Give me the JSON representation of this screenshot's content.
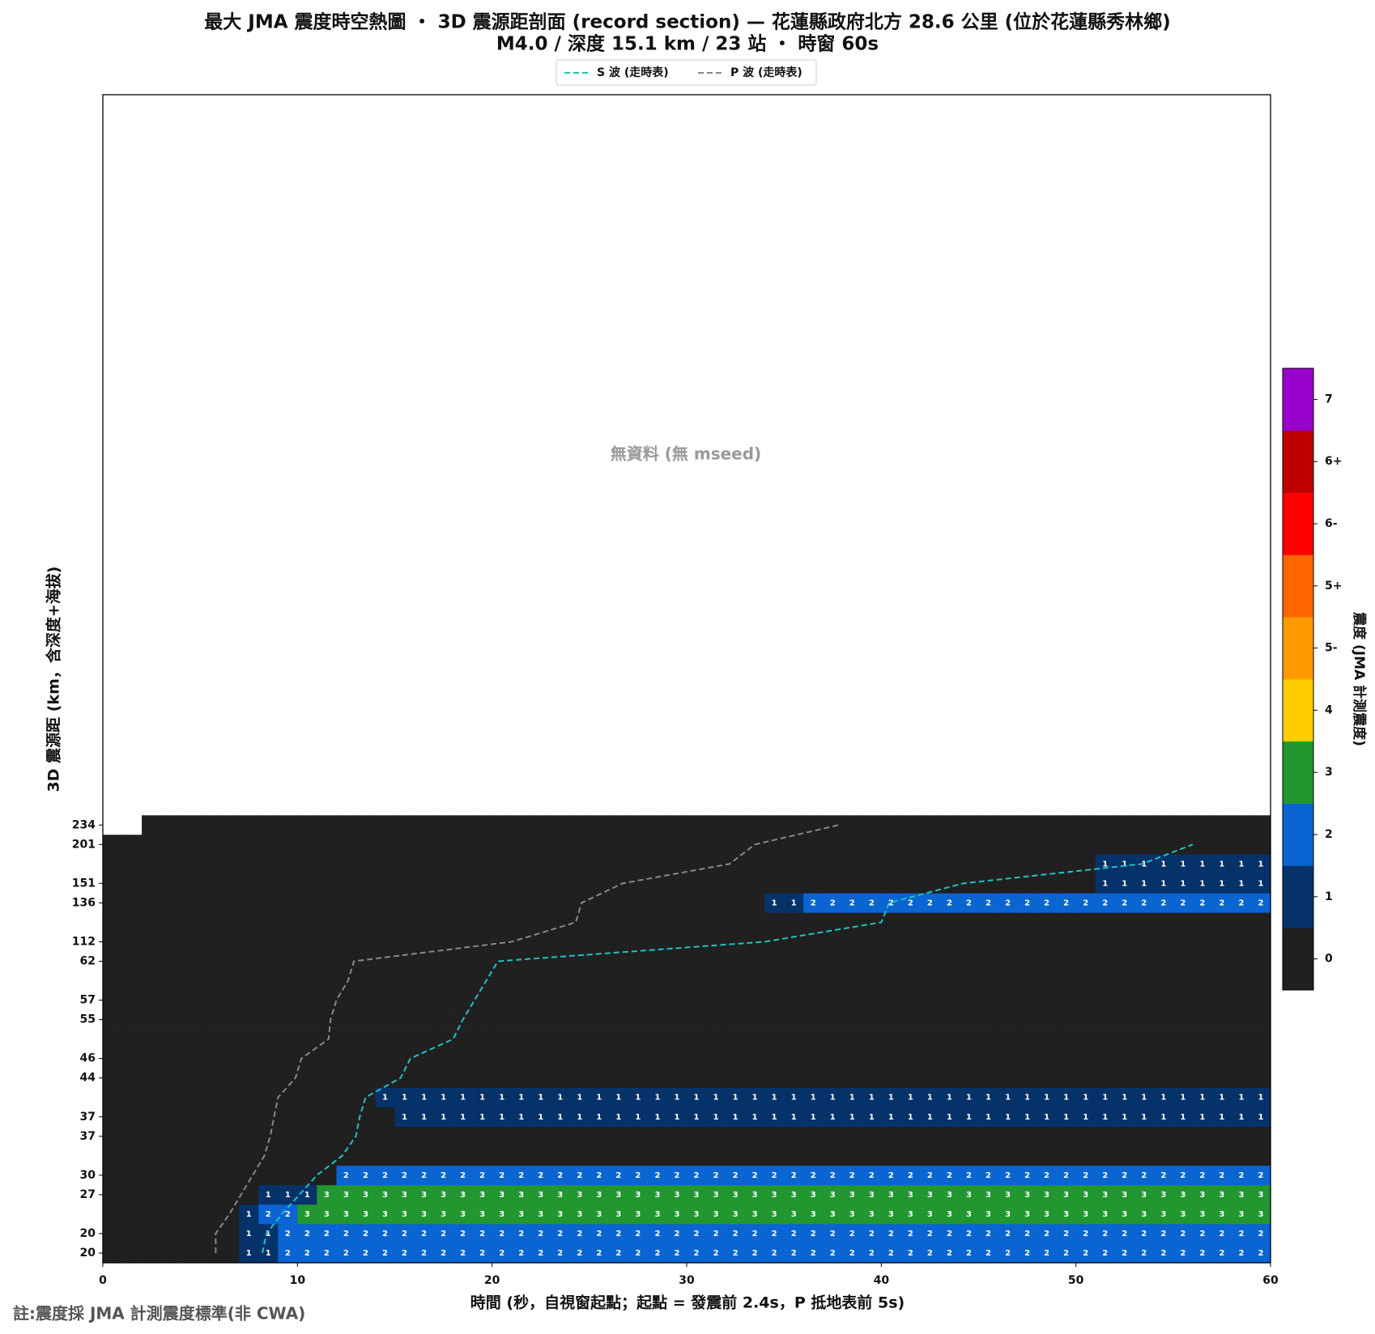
{
  "chart_data": {
    "type": "heatmap",
    "title": "最大 JMA 震度時空熱圖 ・ 3D 震源距剖面 (record section) — 花蓮縣政府北方  28.6  公里 (位於花蓮縣秀林鄉)",
    "subtitle": "M4.0 / 深度 15.1 km / 23 站 ・ 時窗 60s",
    "annotation": "無資料 (無 mseed)",
    "xlabel": "時間 (秒，自視窗起點；起點 = 發震前 2.4s，P 抵地表前 5s)",
    "ylabel": "3D 震源距 (km，含深度+海拔)",
    "footnote": "註:震度採 JMA 計測震度標準(非 CWA)",
    "xlim": [
      0,
      60
    ],
    "xticks": [
      0,
      10,
      20,
      30,
      40,
      50,
      60
    ],
    "categories": [
      "20",
      "20",
      null,
      "27",
      "30",
      null,
      "37",
      "37",
      null,
      "44",
      "46",
      null,
      "55",
      "57",
      null,
      "62",
      "112",
      null,
      "136",
      "151",
      null,
      "201",
      "234"
    ],
    "values": [
      [
        0,
        0,
        0,
        0,
        0,
        0,
        0,
        1,
        1,
        2,
        2,
        2,
        2,
        2,
        2,
        2,
        2,
        2,
        2,
        2,
        2,
        2,
        2,
        2,
        2,
        2,
        2,
        2,
        2,
        2,
        2,
        2,
        2,
        2,
        2,
        2,
        2,
        2,
        2,
        2,
        2,
        2,
        2,
        2,
        2,
        2,
        2,
        2,
        2,
        2,
        2,
        2,
        2,
        2,
        2,
        2,
        2,
        2,
        2,
        2
      ],
      [
        0,
        0,
        0,
        0,
        0,
        0,
        0,
        1,
        1,
        2,
        2,
        2,
        2,
        2,
        2,
        2,
        2,
        2,
        2,
        2,
        2,
        2,
        2,
        2,
        2,
        2,
        2,
        2,
        2,
        2,
        2,
        2,
        2,
        2,
        2,
        2,
        2,
        2,
        2,
        2,
        2,
        2,
        2,
        2,
        2,
        2,
        2,
        2,
        2,
        2,
        2,
        2,
        2,
        2,
        2,
        2,
        2,
        2,
        2,
        2
      ],
      [
        0,
        0,
        0,
        0,
        0,
        0,
        0,
        1,
        2,
        2,
        3,
        3,
        3,
        3,
        3,
        3,
        3,
        3,
        3,
        3,
        3,
        3,
        3,
        3,
        3,
        3,
        3,
        3,
        3,
        3,
        3,
        3,
        3,
        3,
        3,
        3,
        3,
        3,
        3,
        3,
        3,
        3,
        3,
        3,
        3,
        3,
        3,
        3,
        3,
        3,
        3,
        3,
        3,
        3,
        3,
        3,
        3,
        3,
        3,
        3
      ],
      [
        0,
        0,
        0,
        0,
        0,
        0,
        0,
        0,
        1,
        1,
        1,
        3,
        3,
        3,
        3,
        3,
        3,
        3,
        3,
        3,
        3,
        3,
        3,
        3,
        3,
        3,
        3,
        3,
        3,
        3,
        3,
        3,
        3,
        3,
        3,
        3,
        3,
        3,
        3,
        3,
        3,
        3,
        3,
        3,
        3,
        3,
        3,
        3,
        3,
        3,
        3,
        3,
        3,
        3,
        3,
        3,
        3,
        3,
        3,
        3
      ],
      [
        0,
        0,
        0,
        0,
        0,
        0,
        0,
        0,
        0,
        0,
        0,
        0,
        2,
        2,
        2,
        2,
        2,
        2,
        2,
        2,
        2,
        2,
        2,
        2,
        2,
        2,
        2,
        2,
        2,
        2,
        2,
        2,
        2,
        2,
        2,
        2,
        2,
        2,
        2,
        2,
        2,
        2,
        2,
        2,
        2,
        2,
        2,
        2,
        2,
        2,
        2,
        2,
        2,
        2,
        2,
        2,
        2,
        2,
        2,
        2
      ],
      [
        0,
        0,
        0,
        0,
        0,
        0,
        0,
        0,
        0,
        0,
        0,
        0,
        0,
        0,
        0,
        0,
        0,
        0,
        0,
        0,
        0,
        0,
        0,
        0,
        0,
        0,
        0,
        0,
        0,
        0,
        0,
        0,
        0,
        0,
        0,
        0,
        0,
        0,
        0,
        0,
        0,
        0,
        0,
        0,
        0,
        0,
        0,
        0,
        0,
        0,
        0,
        0,
        0,
        0,
        0,
        0,
        0,
        0,
        0,
        0
      ],
      [
        0,
        0,
        0,
        0,
        0,
        0,
        0,
        0,
        0,
        0,
        0,
        0,
        0,
        0,
        0,
        0,
        0,
        0,
        0,
        0,
        0,
        0,
        0,
        0,
        0,
        0,
        0,
        0,
        0,
        0,
        0,
        0,
        0,
        0,
        0,
        0,
        0,
        0,
        0,
        0,
        0,
        0,
        0,
        0,
        0,
        0,
        0,
        0,
        0,
        0,
        0,
        0,
        0,
        0,
        0,
        0,
        0,
        0,
        0,
        0
      ],
      [
        0,
        0,
        0,
        0,
        0,
        0,
        0,
        0,
        0,
        0,
        0,
        0,
        0,
        0,
        0,
        1,
        1,
        1,
        1,
        1,
        1,
        1,
        1,
        1,
        1,
        1,
        1,
        1,
        1,
        1,
        1,
        1,
        1,
        1,
        1,
        1,
        1,
        1,
        1,
        1,
        1,
        1,
        1,
        1,
        1,
        1,
        1,
        1,
        1,
        1,
        1,
        1,
        1,
        1,
        1,
        1,
        1,
        1,
        1,
        1
      ],
      [
        0,
        0,
        0,
        0,
        0,
        0,
        0,
        0,
        0,
        0,
        0,
        0,
        0,
        0,
        1,
        1,
        1,
        1,
        1,
        1,
        1,
        1,
        1,
        1,
        1,
        1,
        1,
        1,
        1,
        1,
        1,
        1,
        1,
        1,
        1,
        1,
        1,
        1,
        1,
        1,
        1,
        1,
        1,
        1,
        1,
        1,
        1,
        1,
        1,
        1,
        1,
        1,
        1,
        1,
        1,
        1,
        1,
        1,
        1,
        1
      ],
      [
        0,
        0,
        0,
        0,
        0,
        0,
        0,
        0,
        0,
        0,
        0,
        0,
        0,
        0,
        0,
        0,
        0,
        0,
        0,
        0,
        0,
        0,
        0,
        0,
        0,
        0,
        0,
        0,
        0,
        0,
        0,
        0,
        0,
        0,
        0,
        0,
        0,
        0,
        0,
        0,
        0,
        0,
        0,
        0,
        0,
        0,
        0,
        0,
        0,
        0,
        0,
        0,
        0,
        0,
        0,
        0,
        0,
        0,
        0,
        0
      ],
      [
        0,
        0,
        0,
        0,
        0,
        0,
        0,
        0,
        0,
        0,
        0,
        0,
        0,
        0,
        0,
        0,
        0,
        0,
        0,
        0,
        0,
        0,
        0,
        0,
        0,
        0,
        0,
        0,
        0,
        0,
        0,
        0,
        0,
        0,
        0,
        0,
        0,
        0,
        0,
        0,
        0,
        0,
        0,
        0,
        0,
        0,
        0,
        0,
        0,
        0,
        0,
        0,
        0,
        0,
        0,
        0,
        0,
        0,
        0,
        0
      ],
      [
        0,
        0,
        0,
        0,
        0,
        0,
        0,
        0,
        0,
        0,
        0,
        0,
        0,
        0,
        0,
        0,
        0,
        0,
        0,
        0,
        0,
        0,
        0,
        0,
        0,
        0,
        0,
        0,
        0,
        0,
        0,
        0,
        0,
        0,
        0,
        0,
        0,
        0,
        0,
        0,
        0,
        0,
        0,
        0,
        0,
        0,
        0,
        0,
        0,
        0,
        0,
        0,
        0,
        0,
        0,
        0,
        0,
        0,
        0,
        0
      ],
      [
        0,
        0,
        0,
        0,
        0,
        0,
        0,
        0,
        0,
        0,
        0,
        0,
        0,
        0,
        0,
        0,
        0,
        0,
        0,
        0,
        0,
        0,
        0,
        0,
        0,
        0,
        0,
        0,
        0,
        0,
        0,
        0,
        0,
        0,
        0,
        0,
        0,
        0,
        0,
        0,
        0,
        0,
        0,
        0,
        0,
        0,
        0,
        0,
        0,
        0,
        0,
        0,
        0,
        0,
        0,
        0,
        0,
        0,
        0,
        0
      ],
      [
        0,
        0,
        0,
        0,
        0,
        0,
        0,
        0,
        0,
        0,
        0,
        0,
        0,
        0,
        0,
        0,
        0,
        0,
        0,
        0,
        0,
        0,
        0,
        0,
        0,
        0,
        0,
        0,
        0,
        0,
        0,
        0,
        0,
        0,
        0,
        0,
        0,
        0,
        0,
        0,
        0,
        0,
        0,
        0,
        0,
        0,
        0,
        0,
        0,
        0,
        0,
        0,
        0,
        0,
        0,
        0,
        0,
        0,
        0,
        0
      ],
      [
        0,
        0,
        0,
        0,
        0,
        0,
        0,
        0,
        0,
        0,
        0,
        0,
        0,
        0,
        0,
        0,
        0,
        0,
        0,
        0,
        0,
        0,
        0,
        0,
        0,
        0,
        0,
        0,
        0,
        0,
        0,
        0,
        0,
        0,
        0,
        0,
        0,
        0,
        0,
        0,
        0,
        0,
        0,
        0,
        0,
        0,
        0,
        0,
        0,
        0,
        0,
        0,
        0,
        0,
        0,
        0,
        0,
        0,
        0,
        0
      ],
      [
        0,
        0,
        0,
        0,
        0,
        0,
        0,
        0,
        0,
        0,
        0,
        0,
        0,
        0,
        0,
        0,
        0,
        0,
        0,
        0,
        0,
        0,
        0,
        0,
        0,
        0,
        0,
        0,
        0,
        0,
        0,
        0,
        0,
        0,
        0,
        0,
        0,
        0,
        0,
        0,
        0,
        0,
        0,
        0,
        0,
        0,
        0,
        0,
        0,
        0,
        0,
        0,
        0,
        0,
        0,
        0,
        0,
        0,
        0,
        0
      ],
      [
        0,
        0,
        0,
        0,
        0,
        0,
        0,
        0,
        0,
        0,
        0,
        0,
        0,
        0,
        0,
        0,
        0,
        0,
        0,
        0,
        0,
        0,
        0,
        0,
        0,
        0,
        0,
        0,
        0,
        0,
        0,
        0,
        0,
        0,
        0,
        0,
        0,
        0,
        0,
        0,
        0,
        0,
        0,
        0,
        0,
        0,
        0,
        0,
        0,
        0,
        0,
        0,
        0,
        0,
        0,
        0,
        0,
        0,
        0,
        0
      ],
      [
        0,
        0,
        0,
        0,
        0,
        0,
        0,
        0,
        0,
        0,
        0,
        0,
        0,
        0,
        0,
        0,
        0,
        0,
        0,
        0,
        0,
        0,
        0,
        0,
        0,
        0,
        0,
        0,
        0,
        0,
        0,
        0,
        0,
        0,
        0,
        0,
        0,
        0,
        0,
        0,
        0,
        0,
        0,
        0,
        0,
        0,
        0,
        0,
        0,
        0,
        0,
        0,
        0,
        0,
        0,
        0,
        0,
        0,
        0,
        0
      ],
      [
        0,
        0,
        0,
        0,
        0,
        0,
        0,
        0,
        0,
        0,
        0,
        0,
        0,
        0,
        0,
        0,
        0,
        0,
        0,
        0,
        0,
        0,
        0,
        0,
        0,
        0,
        0,
        0,
        0,
        0,
        0,
        0,
        0,
        0,
        1,
        1,
        2,
        2,
        2,
        2,
        2,
        2,
        2,
        2,
        2,
        2,
        2,
        2,
        2,
        2,
        2,
        2,
        2,
        2,
        2,
        2,
        2,
        2,
        2,
        2
      ],
      [
        0,
        0,
        0,
        0,
        0,
        0,
        0,
        0,
        0,
        0,
        0,
        0,
        0,
        0,
        0,
        0,
        0,
        0,
        0,
        0,
        0,
        0,
        0,
        0,
        0,
        0,
        0,
        0,
        0,
        0,
        0,
        0,
        0,
        0,
        0,
        0,
        0,
        0,
        0,
        0,
        0,
        0,
        0,
        0,
        0,
        0,
        0,
        0,
        0,
        0,
        0,
        1,
        1,
        1,
        1,
        1,
        1,
        1,
        1,
        1
      ],
      [
        0,
        0,
        0,
        0,
        0,
        0,
        0,
        0,
        0,
        0,
        0,
        0,
        0,
        0,
        0,
        0,
        0,
        0,
        0,
        0,
        0,
        0,
        0,
        0,
        0,
        0,
        0,
        0,
        0,
        0,
        0,
        0,
        0,
        0,
        0,
        0,
        0,
        0,
        0,
        0,
        0,
        0,
        0,
        0,
        0,
        0,
        0,
        0,
        0,
        0,
        0,
        1,
        1,
        1,
        1,
        1,
        1,
        1,
        1,
        1
      ],
      [
        0,
        0,
        0,
        0,
        0,
        0,
        0,
        0,
        0,
        0,
        0,
        0,
        0,
        0,
        0,
        0,
        0,
        0,
        0,
        0,
        0,
        0,
        0,
        0,
        0,
        0,
        0,
        0,
        0,
        0,
        0,
        0,
        0,
        0,
        0,
        0,
        0,
        0,
        0,
        0,
        0,
        0,
        0,
        0,
        0,
        0,
        0,
        0,
        0,
        0,
        0,
        0,
        0,
        0,
        0,
        0,
        0,
        0,
        0,
        0
      ],
      [
        null,
        null,
        0,
        0,
        0,
        0,
        0,
        0,
        0,
        0,
        0,
        0,
        0,
        0,
        0,
        0,
        0,
        0,
        0,
        0,
        0,
        0,
        0,
        0,
        0,
        0,
        0,
        0,
        0,
        0,
        0,
        0,
        0,
        0,
        0,
        0,
        0,
        0,
        0,
        0,
        0,
        0,
        0,
        0,
        0,
        0,
        0,
        0,
        0,
        0,
        0,
        0,
        0,
        0,
        0,
        0,
        0,
        0,
        0,
        0
      ]
    ],
    "series": [
      {
        "name": "S 波 (走時表)",
        "color": "#22c1c3",
        "values": [
          8.2,
          8.4,
          9.2,
          10.1,
          11.0,
          12.3,
          13.0,
          13.2,
          13.5,
          15.3,
          15.8,
          18.0,
          18.5,
          19.1,
          19.7,
          20.3,
          34.0,
          40.0,
          40.4,
          44.2,
          53.4,
          56.0,
          null
        ]
      },
      {
        "name": "P 波 (走時表)",
        "color": "#888888",
        "values": [
          5.8,
          5.8,
          6.5,
          7.1,
          7.7,
          8.3,
          8.6,
          8.8,
          9.0,
          9.9,
          10.2,
          11.6,
          11.7,
          12.0,
          12.6,
          12.9,
          21.0,
          24.3,
          24.6,
          26.7,
          32.2,
          33.5,
          37.8
        ]
      }
    ],
    "colorbar": {
      "label": "震度 (JMA 計測震度)",
      "ticks": [
        "0",
        "1",
        "2",
        "3",
        "4",
        "5-",
        "5+",
        "6-",
        "6+",
        "7"
      ],
      "colors": [
        "#202020",
        "#06326a",
        "#0a64d2",
        "#22962f",
        "#ffcc00",
        "#ff9900",
        "#ff6600",
        "#ff0000",
        "#c00000",
        "#9900cc"
      ]
    }
  }
}
